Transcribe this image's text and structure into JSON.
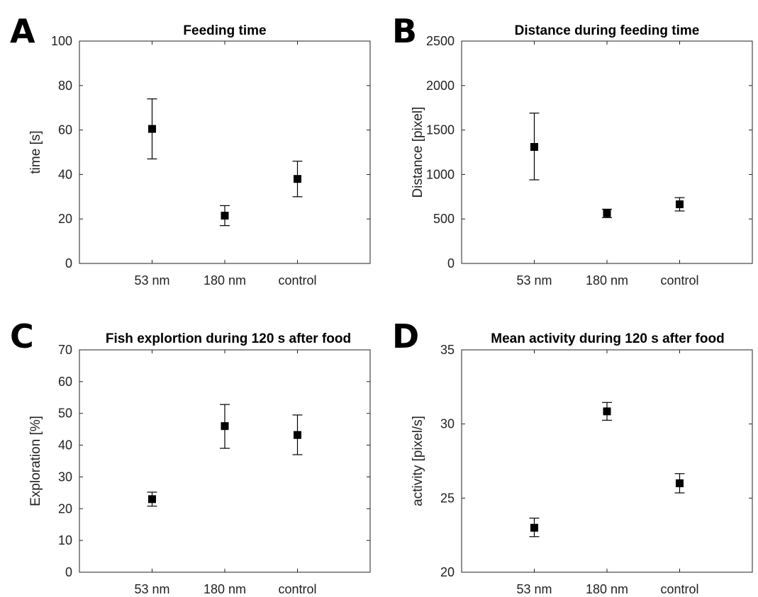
{
  "chart_data": [
    {
      "type": "scatter",
      "panel": "A",
      "title": "Feeding time",
      "xlabel": "",
      "ylabel": "time [s]",
      "categories": [
        "53 nm",
        "180 nm",
        "control"
      ],
      "ylim": [
        0,
        100
      ],
      "yticks": [
        0,
        20,
        40,
        60,
        80,
        100
      ],
      "series": [
        {
          "values": [
            60.5,
            21.5,
            38
          ],
          "err_low": [
            47,
            17,
            30
          ],
          "err_high": [
            74,
            26,
            46
          ]
        }
      ],
      "marker": "square"
    },
    {
      "type": "scatter",
      "panel": "B",
      "title": "Distance during feeding time",
      "xlabel": "",
      "ylabel": "Distance [pixel]",
      "categories": [
        "53 nm",
        "180 nm",
        "control"
      ],
      "ylim": [
        0,
        2500
      ],
      "yticks": [
        0,
        500,
        1000,
        1500,
        2000,
        2500
      ],
      "series": [
        {
          "values": [
            1310,
            565,
            665
          ],
          "err_low": [
            940,
            515,
            590
          ],
          "err_high": [
            1690,
            610,
            740
          ]
        }
      ],
      "marker": "square"
    },
    {
      "type": "scatter",
      "panel": "C",
      "title": "Fish explortion during 120 s after food",
      "xlabel": "",
      "ylabel": "Exploration [%]",
      "categories": [
        "53 nm",
        "180 nm",
        "control"
      ],
      "ylim": [
        0,
        70
      ],
      "yticks": [
        0,
        10,
        20,
        30,
        40,
        50,
        60,
        70
      ],
      "series": [
        {
          "values": [
            23,
            46,
            43.2
          ],
          "err_low": [
            20.8,
            39,
            37
          ],
          "err_high": [
            25.2,
            52.8,
            49.5
          ]
        }
      ],
      "marker": "square"
    },
    {
      "type": "scatter",
      "panel": "D",
      "title": "Mean activity during 120 s after food",
      "xlabel": "",
      "ylabel": "activity [pixel/s]",
      "categories": [
        "53 nm",
        "180 nm",
        "control"
      ],
      "ylim": [
        20,
        35
      ],
      "yticks": [
        20,
        25,
        30,
        35
      ],
      "series": [
        {
          "values": [
            23,
            30.85,
            26
          ],
          "err_low": [
            22.4,
            30.25,
            25.35
          ],
          "err_high": [
            23.65,
            31.45,
            26.65
          ]
        }
      ],
      "marker": "square"
    }
  ]
}
